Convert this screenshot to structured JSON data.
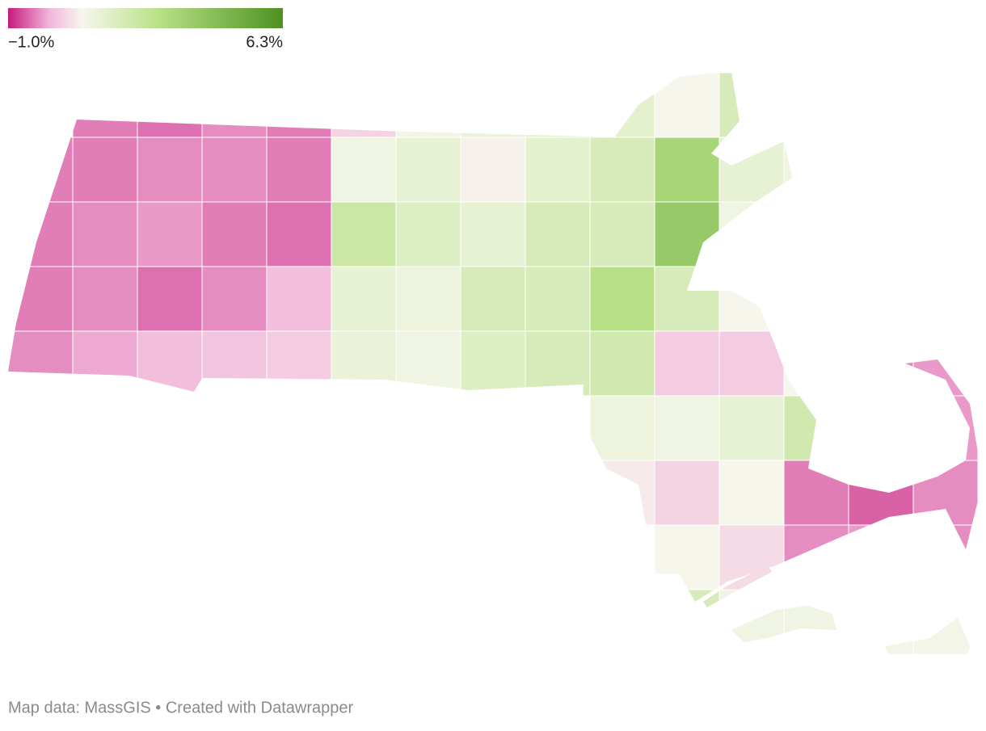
{
  "chart_data": {
    "type": "choropleth",
    "scale": {
      "min": {
        "value": -1.0,
        "label": "−1.0%"
      },
      "max": {
        "value": 6.3,
        "label": "6.3%"
      },
      "colors": [
        "#c51b7d",
        "#f1b6da",
        "#f7f6ee",
        "#b8e186",
        "#4d9221"
      ],
      "color_stops": [
        0,
        0.15,
        0.27,
        0.55,
        1
      ]
    },
    "values": [
      [
        null,
        -0.3,
        -0.4,
        -0.2,
        -0.3,
        0.5,
        1.1,
        1.4,
        1.6,
        1.6,
        1.0,
        2.0,
        null,
        null,
        null
      ],
      [
        -0.3,
        -0.3,
        -0.2,
        -0.2,
        -0.3,
        1.2,
        1.5,
        0.9,
        1.6,
        2.0,
        3.5,
        1.5,
        1.2,
        null,
        null
      ],
      [
        -0.3,
        -0.2,
        -0.1,
        -0.3,
        -0.4,
        2.4,
        1.8,
        1.5,
        2.0,
        2.0,
        4.0,
        1.2,
        null,
        null,
        null
      ],
      [
        -0.3,
        -0.2,
        -0.4,
        -0.2,
        0.2,
        1.5,
        1.3,
        2.0,
        2.0,
        3.0,
        2.0,
        1.0,
        null,
        null,
        null
      ],
      [
        -0.2,
        0.0,
        0.2,
        0.3,
        0.4,
        1.4,
        1.2,
        1.8,
        2.0,
        2.2,
        0.4,
        0.4,
        1.0,
        -0.2,
        -0.1
      ],
      [
        null,
        null,
        null,
        null,
        null,
        null,
        null,
        null,
        null,
        1.3,
        1.2,
        1.5,
        2.2,
        null,
        -0.1
      ],
      [
        null,
        null,
        null,
        null,
        null,
        null,
        null,
        null,
        null,
        0.8,
        0.5,
        1.0,
        -0.3,
        -0.5,
        -0.2
      ],
      [
        null,
        null,
        null,
        null,
        null,
        null,
        null,
        null,
        null,
        null,
        1.0,
        0.6,
        -0.2,
        -0.1,
        -0.2
      ],
      [
        null,
        null,
        null,
        null,
        null,
        null,
        null,
        null,
        null,
        null,
        2.0,
        1.2,
        1.2,
        1.1,
        1.1
      ]
    ],
    "footer": "Map data: MassGIS • Created with Datawrapper"
  }
}
